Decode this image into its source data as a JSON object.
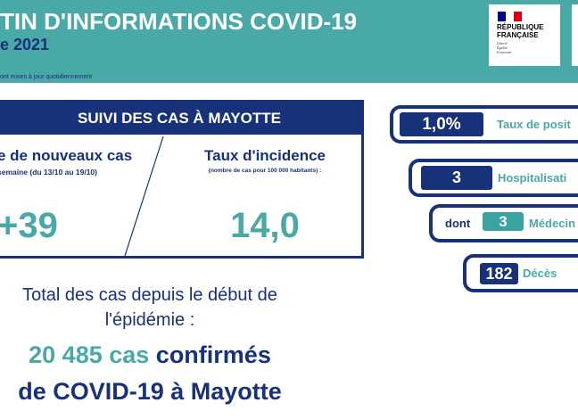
{
  "header": {
    "title": "TIN D'INFORMATIONS COVID-19",
    "date": "e 2021",
    "note": "ont mises à jour quotidiennement",
    "logo": {
      "line1": "RÉPUBLIQUE",
      "line2": "FRANÇAISE",
      "motto1": "Liberté",
      "motto2": "Égalité",
      "motto3": "Fraternité"
    }
  },
  "suivi": {
    "title": "SUIVI DES CAS À MAYOTTE",
    "new_cases_label": "e de nouveaux cas",
    "new_cases_period": "semaine (du 13/10 au 19/10)",
    "new_cases_value": "+39",
    "incidence_label": "Taux d'incidence",
    "incidence_sub": "(nombre de cas pour 100 000 habitants) :",
    "incidence_value": "14,0"
  },
  "total": {
    "text": "Total des cas depuis le début de l'épidémie :",
    "count": "20 485 cas",
    "confirmed": "confirmés",
    "line2": "de COVID-19 à Mayotte"
  },
  "stats": {
    "positivity": {
      "value": "1,0%",
      "label": "Taux de posit"
    },
    "hospitalisations": {
      "value": "3",
      "label": "Hospitalisati"
    },
    "medecine": {
      "prefix": "dont",
      "value": "3",
      "label": "Médecin"
    },
    "deces": {
      "value": "182",
      "label": "Décès"
    }
  },
  "colors": {
    "navy": "#17317a",
    "teal": "#49a9a6"
  }
}
